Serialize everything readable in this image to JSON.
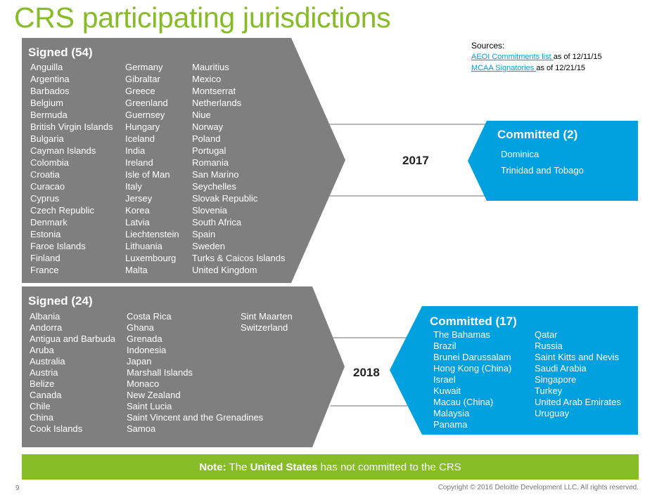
{
  "title": "CRS participating jurisdictions",
  "sources": {
    "label": "Sources:",
    "line1_link": "AEOI Commitments list ",
    "line1_rest": "as of 12/11/15",
    "line2_link": "MCAA Signatories ",
    "line2_rest": "as of 12/21/15"
  },
  "group2017": {
    "year": "2017",
    "signed": {
      "heading": "Signed (54)",
      "col1": [
        "Anguilla",
        "Argentina",
        "Barbados",
        "Belgium",
        "Bermuda",
        "British Virgin Islands",
        "Bulgaria",
        "Cayman Islands",
        "Colombia",
        "Croatia",
        "Curacao",
        "Cyprus",
        "Czech Republic",
        "Denmark",
        "Estonia",
        "Faroe Islands",
        "Finland",
        "France"
      ],
      "col2": [
        "Germany",
        "Gibraltar",
        "Greece",
        "Greenland",
        "Guernsey",
        "Hungary",
        "Iceland",
        "India",
        "Ireland",
        "Isle of Man",
        "Italy",
        "Jersey",
        "Korea",
        "Latvia",
        "Liechtenstein",
        "Lithuania",
        "Luxembourg",
        "Malta"
      ],
      "col3": [
        "Mauritius",
        "Mexico",
        "Montserrat",
        "Netherlands",
        "Niue",
        "Norway",
        "Poland",
        "Portugal",
        "Romania",
        "San Marino",
        "Seychelles",
        "Slovak Republic",
        "Slovenia",
        "South Africa",
        "Spain",
        "Sweden",
        "Turks & Caicos Islands",
        "United Kingdom"
      ]
    },
    "committed": {
      "heading": "Committed (2)",
      "col1": [
        "Dominica",
        "Trinidad and Tobago"
      ]
    }
  },
  "group2018": {
    "year": "2018",
    "signed": {
      "heading": "Signed (24)",
      "col1": [
        "Albania",
        "Andorra",
        "Antigua and Barbuda",
        "Aruba",
        "Australia",
        "Austria",
        "Belize",
        "Canada",
        "Chile",
        "China",
        "Cook Islands"
      ],
      "col2": [
        "Costa Rica",
        "Ghana",
        "Grenada",
        "Indonesia",
        "Japan",
        "Marshall Islands",
        "Monaco",
        "New Zealand",
        "Saint Lucia",
        "Saint Vincent and the Grenadines",
        "Samoa"
      ],
      "col3": [
        "Sint Maarten",
        "Switzerland"
      ]
    },
    "committed": {
      "heading": "Committed (17)",
      "col1": [
        "The Bahamas",
        "Brazil",
        "Brunei Darussalam",
        "Hong Kong (China)",
        "Israel",
        "Kuwait",
        "Macau (China)",
        "Malaysia",
        "Panama"
      ],
      "col2": [
        "Qatar",
        "Russia",
        "Saint Kitts and Nevis",
        "Saudi Arabia",
        "Singapore",
        "Turkey",
        "United Arab Emirates",
        "Uruguay"
      ]
    }
  },
  "note": {
    "label": "Note:",
    "pre": " The ",
    "bold": "United States",
    "post": " has not committed to the CRS"
  },
  "footer": {
    "page": "9",
    "copyright": "Copyright © 2016 Deloitte Development LLC. All rights reserved."
  },
  "colors": {
    "gray": "#7f7f7f",
    "blue": "#00a1de",
    "green": "#86bc25"
  }
}
